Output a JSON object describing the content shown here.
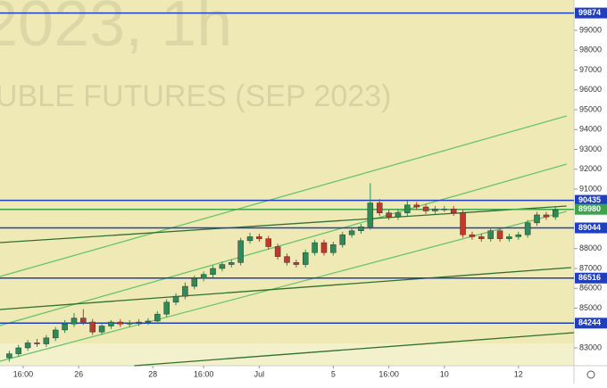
{
  "chart_data": {
    "type": "candlestick",
    "watermark_title": "2023, 1h",
    "watermark_subtitle": "UBLE FUTURES (SEP 2023)",
    "up_color": "#2e8b57",
    "down_color": "#c0392b",
    "open": [
      82500,
      82700,
      83000,
      83250,
      83200,
      83500,
      83900,
      84200,
      84500,
      84300,
      83800,
      84100,
      84300,
      84200,
      84250,
      84300,
      84350,
      84700,
      85300,
      85600,
      86100,
      86500,
      86700,
      87000,
      87200,
      87300,
      88400,
      88600,
      88500,
      88100,
      87600,
      87300,
      87200,
      87800,
      88300,
      87800,
      88200,
      88700,
      88900,
      89100,
      90300,
      89800,
      89600,
      89800,
      90200,
      90100,
      89900,
      90000,
      90000,
      89800,
      88700,
      88600,
      88500,
      88900,
      88500,
      88600,
      88700,
      89300,
      89700,
      89600
    ],
    "high": [
      82850,
      83150,
      83400,
      83450,
      83650,
      84050,
      84400,
      84750,
      84950,
      84450,
      84200,
      84400,
      84450,
      84400,
      84450,
      84500,
      84850,
      85450,
      85750,
      86300,
      86650,
      86850,
      87150,
      87350,
      87450,
      88550,
      88800,
      88750,
      88650,
      88250,
      87750,
      87450,
      87950,
      88450,
      88450,
      88350,
      88850,
      89050,
      89250,
      91300,
      90500,
      89950,
      90000,
      90400,
      90350,
      90250,
      90150,
      90150,
      90150,
      89950,
      88850,
      88750,
      89050,
      89050,
      88750,
      88850,
      89450,
      89850,
      89850,
      90100
    ],
    "low": [
      82300,
      82550,
      82850,
      83050,
      83050,
      83350,
      83750,
      84050,
      84150,
      83650,
      83650,
      83950,
      84050,
      84050,
      84100,
      84150,
      84200,
      84550,
      85150,
      85450,
      85950,
      86350,
      86550,
      86850,
      87050,
      87150,
      88250,
      88350,
      87950,
      87450,
      87150,
      87050,
      87050,
      87650,
      87650,
      87650,
      88050,
      88550,
      88750,
      88950,
      89650,
      89450,
      89450,
      89650,
      89950,
      89750,
      89750,
      89850,
      89650,
      88550,
      88450,
      88350,
      88350,
      88350,
      88350,
      88450,
      88550,
      89150,
      89450,
      89450
    ],
    "close": [
      82700,
      83000,
      83250,
      83200,
      83500,
      83900,
      84200,
      84500,
      84300,
      83800,
      84100,
      84300,
      84200,
      84250,
      84300,
      84350,
      84700,
      85300,
      85600,
      86100,
      86500,
      86700,
      87000,
      87200,
      87300,
      88400,
      88600,
      88500,
      88100,
      87600,
      87300,
      87200,
      87800,
      88300,
      87800,
      88200,
      88700,
      88900,
      89100,
      90300,
      89800,
      89600,
      89800,
      90200,
      90100,
      89900,
      90000,
      90000,
      89800,
      88700,
      88600,
      88500,
      88900,
      88500,
      88600,
      88700,
      89300,
      89700,
      89600,
      89950
    ],
    "xlim": [
      -1,
      61
    ],
    "ylim": [
      82100,
      100530
    ],
    "yticks": [
      83000,
      85000,
      86000,
      87000,
      88000,
      91000,
      92000,
      93000,
      94000,
      95000,
      96000,
      97000,
      98000,
      99000
    ],
    "xticks": [
      {
        "value": 1.5,
        "label": "16:00"
      },
      {
        "value": 7.5,
        "label": "26"
      },
      {
        "value": 15.5,
        "label": "28"
      },
      {
        "value": 21,
        "label": "16:00"
      },
      {
        "value": 27,
        "label": "Jul"
      },
      {
        "value": 35,
        "label": "5"
      },
      {
        "value": 41,
        "label": "16:00"
      },
      {
        "value": 47,
        "label": "10"
      },
      {
        "value": 55,
        "label": "12"
      }
    ],
    "levels": [
      {
        "value": 99874,
        "color": "#1f3fbf"
      },
      {
        "value": 90435,
        "color": "#1f3fbf"
      },
      {
        "value": 89980,
        "color": "#3fa34d"
      },
      {
        "value": 89044,
        "color": "#1f3fbf"
      },
      {
        "value": 86516,
        "color": "#1f3fbf"
      },
      {
        "value": 84244,
        "color": "#1f3fbf"
      }
    ],
    "trendlines": [
      {
        "x": [
          -1,
          60.2
        ],
        "y": [
          86596,
          94685
        ],
        "color": "#6cc46c"
      },
      {
        "x": [
          -1,
          60.2
        ],
        "y": [
          84124,
          92258
        ],
        "color": "#6cc46c"
      },
      {
        "x": [
          -1,
          60.2
        ],
        "y": [
          82326,
          89876
        ],
        "color": "#6cc46c"
      },
      {
        "x": [
          -1,
          60.2
        ],
        "y": [
          88303,
          90146
        ],
        "color": "#2f6f2f"
      },
      {
        "x": [
          -1,
          60.7
        ],
        "y": [
          84933,
          87045
        ],
        "color": "#2f6f2f"
      },
      {
        "x": [
          13.5,
          61
        ],
        "y": [
          82101,
          83764
        ],
        "color": "#2f6f2f"
      }
    ]
  }
}
